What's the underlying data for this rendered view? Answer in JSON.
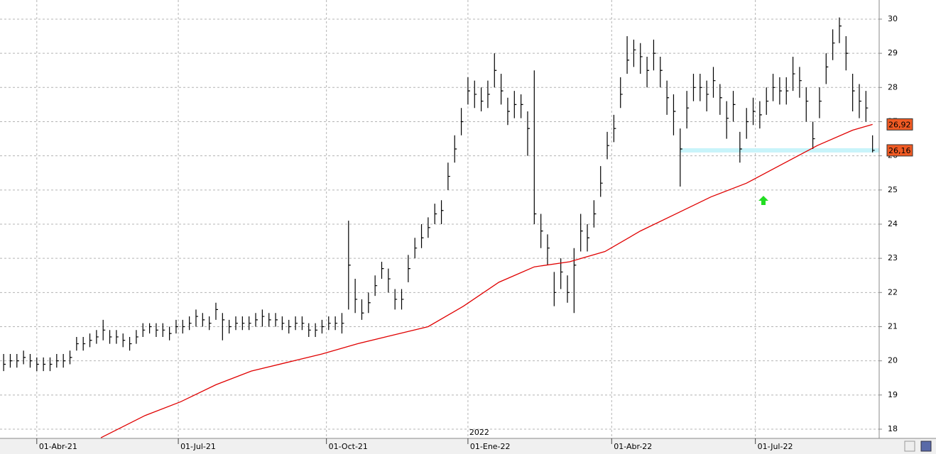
{
  "chart_data": {
    "type": "ohlc",
    "x": [
      0,
      3,
      6,
      9,
      12,
      15,
      18,
      21,
      24,
      27,
      30,
      33,
      36,
      39,
      42,
      45,
      48,
      51,
      54,
      57,
      60,
      63,
      66,
      69,
      72,
      75,
      78,
      81,
      84,
      87,
      90,
      93,
      96,
      99,
      102,
      105,
      108,
      111,
      114,
      117,
      120,
      123,
      126,
      129,
      132,
      135,
      138,
      141,
      144,
      147,
      150,
      153,
      156,
      159,
      162,
      165,
      168,
      171,
      174,
      177,
      180,
      183,
      186,
      189,
      192,
      195,
      198,
      201,
      204,
      207,
      210,
      213,
      216,
      219,
      222,
      225,
      228,
      231,
      234,
      237,
      240,
      243,
      246,
      249,
      252,
      255,
      258,
      261,
      264,
      267,
      270,
      273,
      276,
      279,
      282,
      285,
      288,
      291,
      294,
      297,
      300,
      303,
      306,
      309,
      312,
      315,
      318,
      321,
      324,
      327,
      330,
      333,
      336,
      339,
      342,
      345,
      348,
      351,
      354,
      357,
      360,
      363,
      366,
      369,
      372,
      375,
      378,
      381,
      384,
      387,
      390,
      393
    ],
    "high": [
      20.2,
      20.2,
      20.2,
      20.3,
      20.2,
      20.1,
      20.1,
      20.1,
      20.2,
      20.2,
      20.3,
      20.7,
      20.7,
      20.8,
      20.9,
      21.2,
      20.9,
      20.9,
      20.8,
      20.7,
      20.9,
      21.1,
      21.1,
      21.1,
      21.1,
      21.0,
      21.2,
      21.2,
      21.3,
      21.5,
      21.4,
      21.3,
      21.7,
      21.4,
      21.2,
      21.3,
      21.3,
      21.3,
      21.4,
      21.5,
      21.4,
      21.4,
      21.3,
      21.2,
      21.3,
      21.3,
      21.1,
      21.1,
      21.2,
      21.3,
      21.3,
      21.4,
      24.1,
      22.4,
      21.8,
      22.0,
      22.5,
      22.9,
      22.7,
      22.1,
      22.1,
      23.1,
      23.6,
      24.0,
      24.2,
      24.6,
      24.7,
      25.8,
      26.6,
      27.4,
      28.3,
      28.2,
      28.0,
      28.2,
      29.0,
      28.4,
      27.7,
      27.9,
      27.8,
      27.3,
      28.5,
      24.3,
      23.7,
      22.6,
      23.0,
      22.5,
      23.3,
      24.3,
      24.0,
      24.7,
      25.7,
      26.7,
      27.2,
      28.3,
      29.5,
      29.4,
      29.3,
      28.9,
      29.4,
      28.9,
      28.2,
      27.8,
      26.8,
      27.9,
      28.4,
      28.4,
      28.2,
      28.6,
      28.1,
      27.6,
      27.9,
      26.7,
      27.4,
      27.7,
      27.6,
      28.0,
      28.4,
      28.3,
      28.3,
      28.9,
      28.6,
      28.0,
      27.0,
      28.0,
      29.0,
      29.7,
      30.05,
      29.5,
      28.4,
      28.1,
      27.9,
      26.6
    ],
    "low": [
      19.7,
      19.8,
      19.8,
      19.9,
      19.8,
      19.7,
      19.7,
      19.7,
      19.8,
      19.8,
      19.9,
      20.3,
      20.3,
      20.4,
      20.5,
      20.6,
      20.5,
      20.5,
      20.4,
      20.3,
      20.5,
      20.7,
      20.8,
      20.7,
      20.7,
      20.6,
      20.8,
      20.8,
      20.9,
      21.0,
      21.0,
      20.9,
      21.2,
      20.6,
      20.8,
      20.9,
      20.9,
      20.9,
      21.0,
      21.0,
      21.0,
      21.0,
      20.9,
      20.8,
      20.9,
      20.9,
      20.7,
      20.7,
      20.8,
      20.9,
      20.9,
      20.8,
      21.5,
      21.4,
      21.2,
      21.4,
      21.9,
      22.4,
      22.0,
      21.5,
      21.5,
      22.3,
      23.0,
      23.3,
      23.6,
      24.0,
      24.0,
      25.0,
      25.8,
      26.6,
      27.5,
      27.4,
      27.3,
      27.4,
      28.0,
      27.5,
      26.9,
      27.1,
      27.1,
      26.0,
      24.0,
      23.3,
      22.8,
      21.6,
      22.1,
      21.7,
      21.4,
      23.2,
      23.2,
      23.9,
      24.8,
      25.9,
      26.4,
      27.4,
      28.4,
      28.6,
      28.4,
      28.0,
      28.5,
      28.0,
      27.2,
      26.6,
      25.1,
      26.8,
      27.6,
      27.6,
      27.3,
      27.7,
      27.2,
      26.5,
      27.0,
      25.8,
      26.5,
      26.9,
      26.8,
      27.2,
      27.6,
      27.5,
      27.5,
      27.9,
      27.7,
      27.0,
      26.2,
      27.1,
      28.1,
      28.8,
      29.3,
      28.5,
      27.3,
      27.1,
      27.0,
      26.1
    ],
    "close": [
      19.9,
      20.0,
      20.0,
      20.1,
      20.0,
      19.9,
      19.9,
      19.9,
      20.0,
      20.0,
      20.1,
      20.5,
      20.5,
      20.6,
      20.7,
      20.9,
      20.7,
      20.7,
      20.6,
      20.5,
      20.7,
      20.9,
      21.0,
      20.9,
      20.9,
      20.8,
      21.0,
      21.0,
      21.1,
      21.3,
      21.2,
      21.1,
      21.5,
      21.2,
      21.0,
      21.1,
      21.1,
      21.1,
      21.2,
      21.3,
      21.2,
      21.2,
      21.1,
      21.0,
      21.1,
      21.1,
      20.9,
      20.9,
      21.0,
      21.1,
      21.1,
      21.1,
      22.8,
      21.8,
      21.4,
      21.7,
      22.2,
      22.7,
      22.4,
      21.8,
      21.8,
      22.7,
      23.3,
      23.6,
      23.9,
      24.3,
      24.4,
      25.4,
      26.2,
      27.0,
      27.9,
      27.8,
      27.6,
      27.8,
      28.5,
      27.9,
      27.3,
      27.5,
      27.5,
      26.8,
      24.3,
      23.8,
      23.3,
      22.0,
      22.6,
      22.0,
      22.8,
      23.8,
      23.6,
      24.3,
      25.2,
      26.3,
      26.8,
      27.8,
      28.8,
      29.1,
      28.9,
      28.5,
      29.0,
      28.5,
      27.7,
      27.3,
      26.2,
      27.4,
      28.0,
      28.0,
      27.8,
      28.2,
      27.7,
      27.1,
      27.5,
      26.2,
      27.0,
      27.3,
      27.2,
      27.6,
      28.0,
      27.9,
      27.9,
      28.4,
      28.2,
      27.6,
      26.5,
      27.6,
      28.6,
      29.3,
      29.8,
      29.0,
      27.9,
      27.6,
      27.4,
      26.16
    ],
    "bar_color": "#000000",
    "moving_average": {
      "color": "#e00000",
      "x": [
        44,
        64,
        80,
        96,
        112,
        128,
        144,
        160,
        176,
        192,
        208,
        224,
        240,
        256,
        272,
        288,
        304,
        320,
        336,
        352,
        368,
        384,
        393
      ],
      "values": [
        17.75,
        18.4,
        18.8,
        19.3,
        19.7,
        19.95,
        20.2,
        20.5,
        20.75,
        21.0,
        21.6,
        22.3,
        22.75,
        22.9,
        23.2,
        23.8,
        24.3,
        24.8,
        25.2,
        25.75,
        26.3,
        26.75,
        26.92
      ]
    },
    "price_labels": [
      {
        "value": 26.92,
        "label": "26,92"
      },
      {
        "value": 26.16,
        "label": "26,16"
      }
    ],
    "price_label_color": "#f05a23",
    "support_color": "#c8f4fa",
    "xlim": [
      -1,
      396
    ],
    "ylim": [
      17.73,
      30.56
    ],
    "yticks": [
      18,
      19,
      20,
      21,
      22,
      23,
      24,
      25,
      26,
      27,
      28,
      29,
      30
    ],
    "xticks": [
      {
        "value": 15,
        "label": "01-Abr-21"
      },
      {
        "value": 79,
        "label": "01-Jul-21"
      },
      {
        "value": 146,
        "label": "01-Oct-21"
      },
      {
        "value": 210,
        "label": "01-Ene-22"
      },
      {
        "value": 275,
        "label": "01-Abr-22"
      },
      {
        "value": 340,
        "label": "01-Jul-22"
      }
    ],
    "year_marker": {
      "value": 210,
      "label": "2022"
    },
    "grid": true
  }
}
